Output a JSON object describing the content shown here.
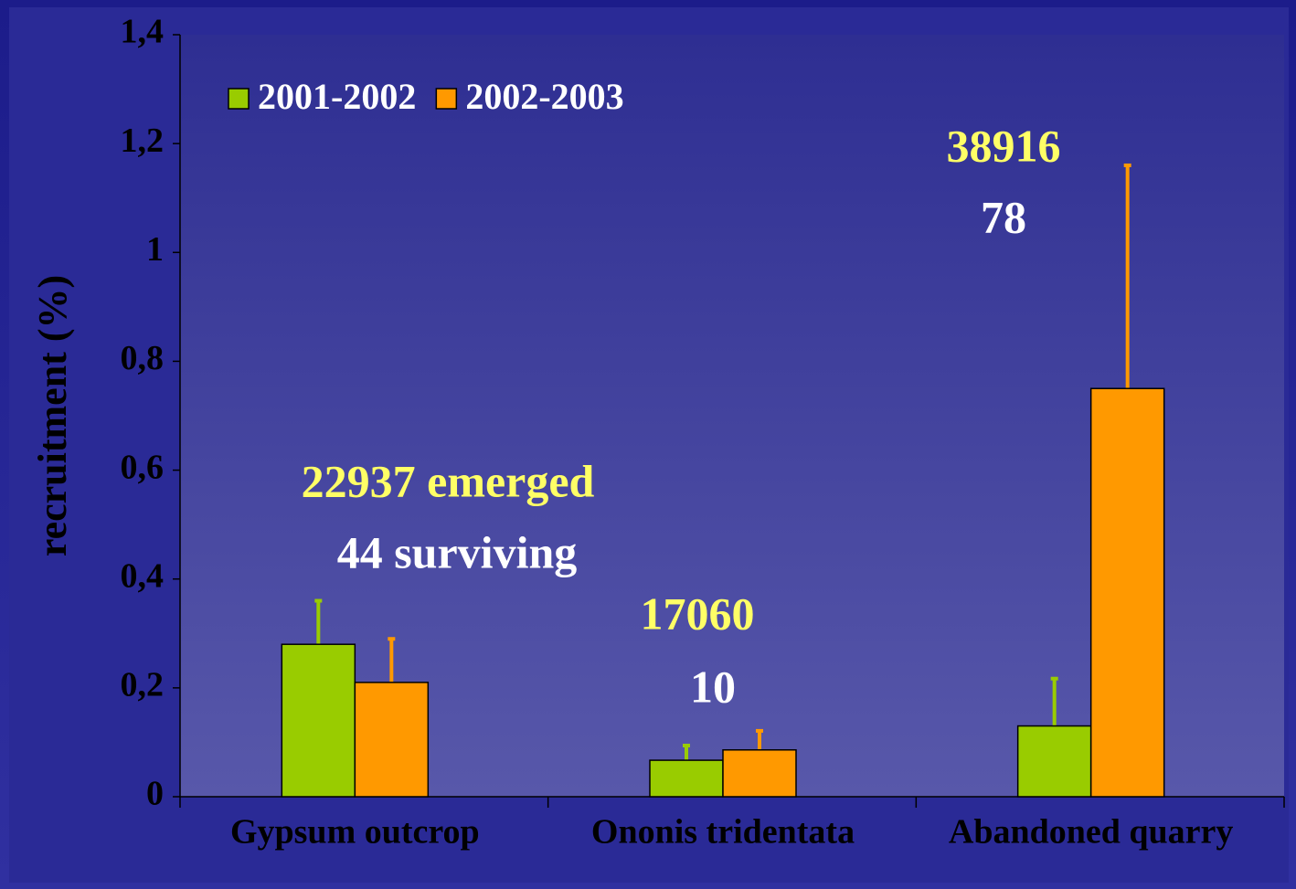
{
  "chart_data": {
    "type": "bar",
    "y_label": "recruitment (%)",
    "categories": [
      "Gypsum outcrop",
      "Ononis tridentata",
      "Abandoned quarry"
    ],
    "series": [
      {
        "name": "2001-2002",
        "color": "#99cc00",
        "values": [
          0.28,
          0.067,
          0.13
        ],
        "errors": [
          0.08,
          0.027,
          0.087
        ]
      },
      {
        "name": "2002-2003",
        "color": "#ff9900",
        "values": [
          0.21,
          0.086,
          0.75
        ],
        "errors": [
          0.08,
          0.035,
          0.41
        ]
      }
    ],
    "ylim": [
      0,
      1.4
    ],
    "yticks": [
      0,
      {
        "value": 0.2,
        "label": "0,2"
      },
      {
        "value": 0.4,
        "label": "0,4"
      },
      {
        "value": 0.6,
        "label": "0,6"
      },
      {
        "value": 0.8,
        "label": "0,8"
      },
      1,
      {
        "value": 1.2,
        "label": "1,2"
      },
      {
        "value": 1.4,
        "label": "1,4"
      }
    ],
    "legend": "top-left",
    "annotations": [
      {
        "emerged": "22937 emerged",
        "surviving": "44 surviving"
      },
      {
        "emerged": "17060",
        "surviving": "10"
      },
      {
        "emerged": "38916",
        "surviving": "78"
      }
    ],
    "annotation_colors": {
      "emerged": "#ffff66",
      "surviving": "#ffffff"
    }
  }
}
